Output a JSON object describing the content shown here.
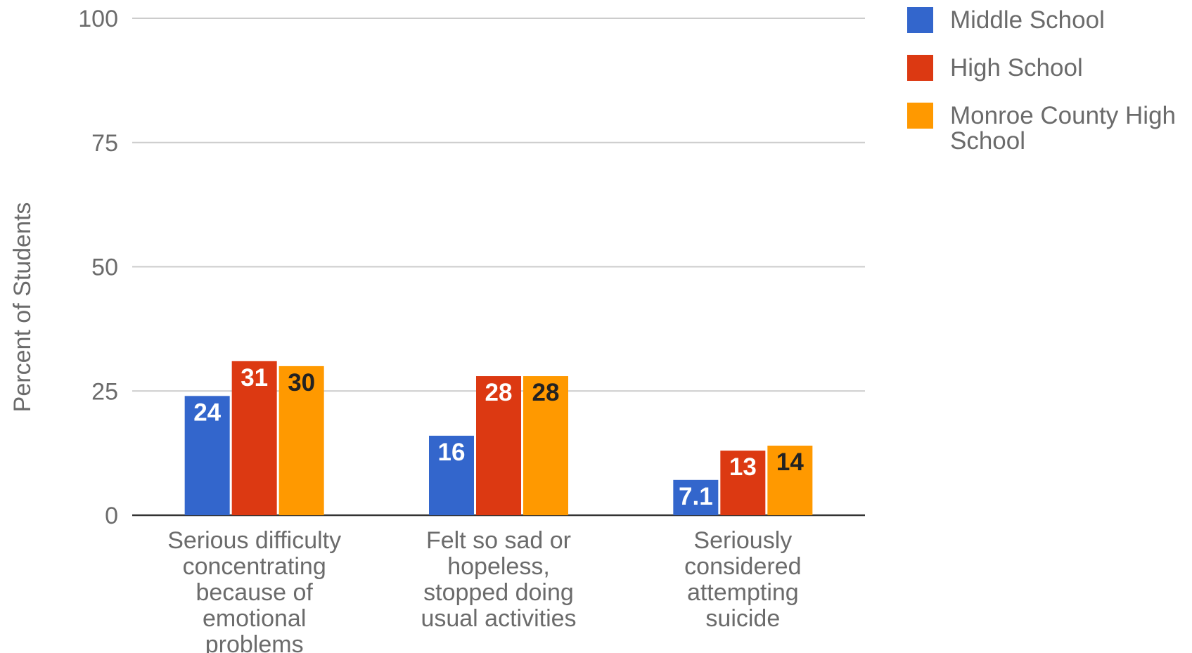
{
  "chart_data": {
    "type": "bar",
    "title": "",
    "xlabel": "",
    "ylabel": "Percent of Students",
    "ylim": [
      0,
      100
    ],
    "yticks": [
      0,
      25,
      50,
      75,
      100
    ],
    "grid": true,
    "legend_position": "right",
    "categories": [
      "Serious difficulty concentrating because of emotional problems",
      "Felt so sad or hopeless, stopped doing usual activities",
      "Seriously considered attempting suicide"
    ],
    "category_label_lines": [
      [
        "Serious difficulty",
        "concentrating",
        "because of",
        "emotional",
        "problems"
      ],
      [
        "Felt so sad or",
        "hopeless,",
        "stopped doing",
        "usual activities"
      ],
      [
        "Seriously",
        "considered",
        "attempting",
        "suicide"
      ]
    ],
    "series": [
      {
        "name": "Middle School",
        "color": "#3366cc",
        "label_color": "#ffffff",
        "values": [
          24,
          16,
          7.1
        ],
        "labels": [
          "24",
          "16",
          "7.1"
        ]
      },
      {
        "name": "High School",
        "color": "#dc3912",
        "label_color": "#ffffff",
        "values": [
          31,
          28,
          13
        ],
        "labels": [
          "31",
          "28",
          "13"
        ]
      },
      {
        "name": "Monroe County High School",
        "color": "#ff9900",
        "label_color": "#222222",
        "values": [
          30,
          28,
          14
        ],
        "labels": [
          "30",
          "28",
          "14"
        ],
        "name_lines": [
          "Monroe County High",
          "School"
        ]
      }
    ]
  }
}
